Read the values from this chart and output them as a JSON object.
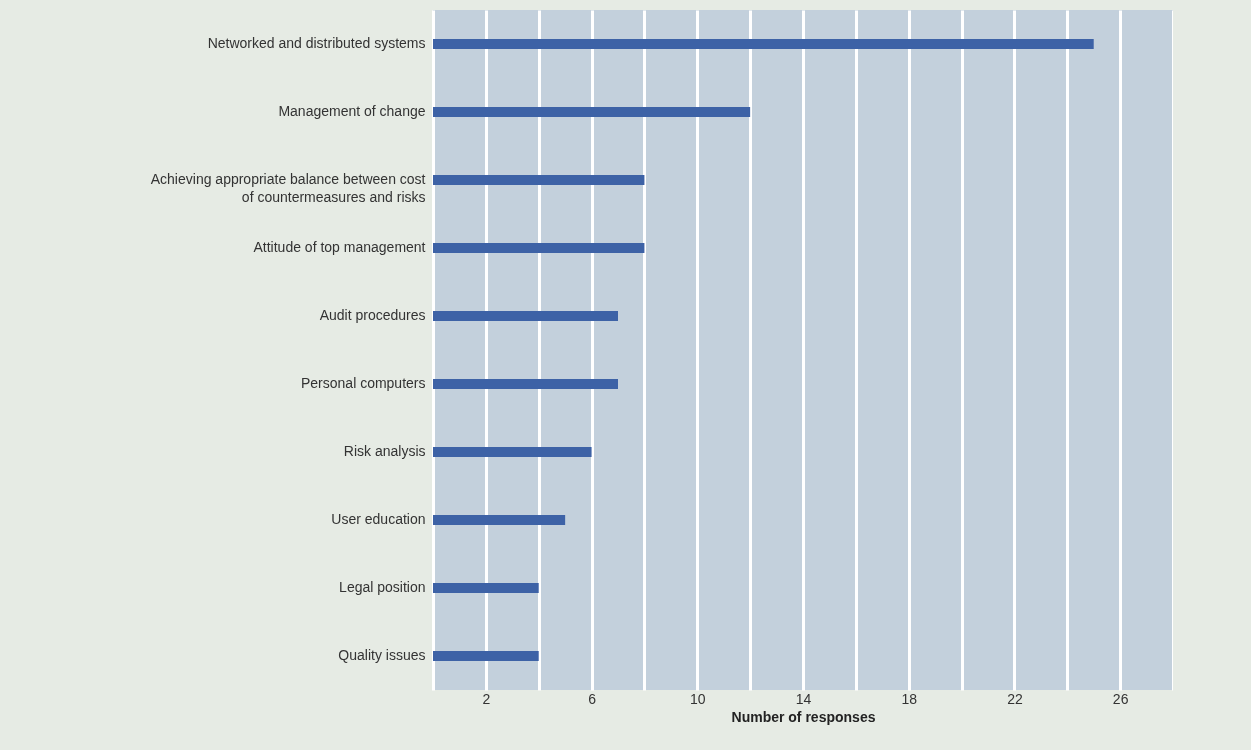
{
  "chart_data": {
    "type": "bar",
    "orientation": "horizontal",
    "xlabel": "Number of responses",
    "categories": [
      "Networked and distributed systems",
      "Management of change",
      "Achieving appropriate balance between cost of countermeasures and risks",
      "Attitude of top management",
      "Audit procedures",
      "Personal computers",
      "Risk analysis",
      "User education",
      "Legal position",
      "Quality issues"
    ],
    "values": [
      25,
      12,
      8,
      8,
      7,
      7,
      6,
      5,
      4,
      4
    ],
    "color": "#3d62a6",
    "xlim": [
      0,
      28
    ],
    "xticks": [
      {
        "value": 0,
        "label": null
      },
      2,
      {
        "value": 4,
        "label": null
      },
      6,
      {
        "value": 8,
        "label": null
      },
      10,
      {
        "value": 12,
        "label": null
      },
      14,
      {
        "value": 16,
        "label": null
      },
      18,
      {
        "value": 20,
        "label": null
      },
      22,
      {
        "value": 24,
        "label": null
      },
      26,
      {
        "value": 28,
        "label": null
      }
    ],
    "grid": "x"
  }
}
